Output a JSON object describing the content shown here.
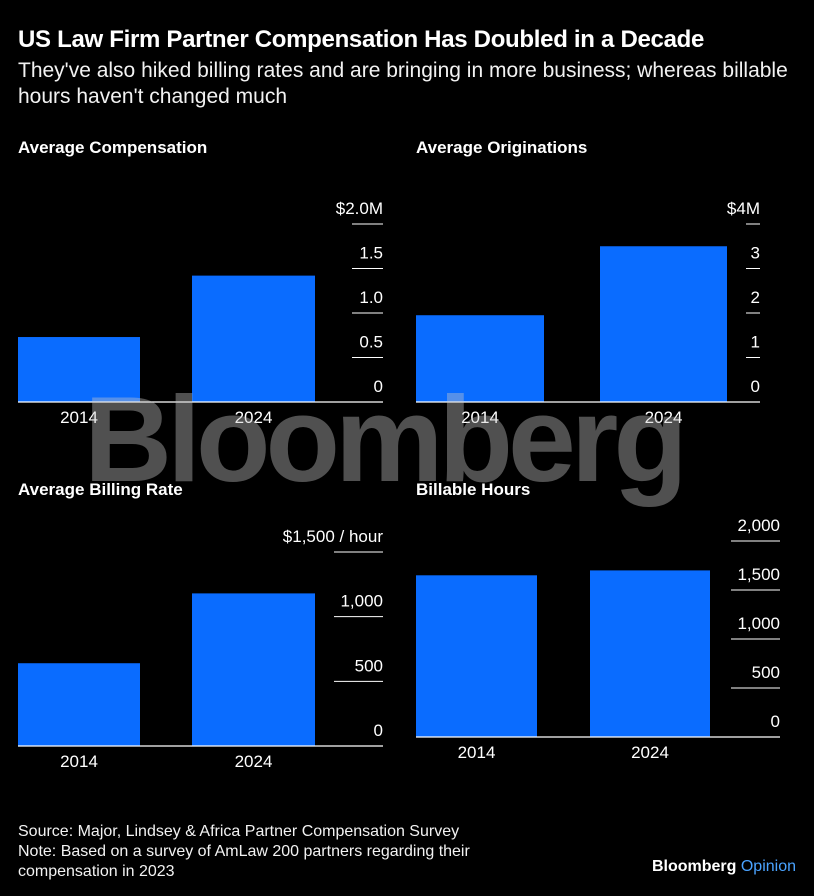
{
  "header": {
    "title": "US Law Firm Partner Compensation Has Doubled in a Decade",
    "subtitle": "They've also hiked billing rates and are bringing in more business; whereas billable hours haven't changed much"
  },
  "colors": {
    "bar": "#0a6cff",
    "background": "#000000",
    "gridline": "#ffffff"
  },
  "chart_data": [
    {
      "type": "bar",
      "title": "Average Compensation",
      "categories": [
        "2014",
        "2024"
      ],
      "values": [
        0.73,
        1.42
      ],
      "ylim": [
        0,
        2.0
      ],
      "ticks": [
        0,
        0.5,
        1.0,
        1.5,
        2.0
      ],
      "tick_labels": [
        "0",
        "0.5",
        "1.0",
        "1.5",
        "$2.0M"
      ]
    },
    {
      "type": "bar",
      "title": "Average Originations",
      "categories": [
        "2014",
        "2024"
      ],
      "values": [
        1.95,
        3.5
      ],
      "ylim": [
        0,
        4
      ],
      "ticks": [
        0,
        1,
        2,
        3,
        4
      ],
      "tick_labels": [
        "0",
        "1",
        "2",
        "3",
        "$4M"
      ]
    },
    {
      "type": "bar",
      "title": "Average Billing Rate",
      "categories": [
        "2014",
        "2024"
      ],
      "values": [
        640,
        1180
      ],
      "ylim": [
        0,
        1500
      ],
      "ticks": [
        0,
        500,
        1000,
        1500
      ],
      "tick_labels": [
        "0",
        "500",
        "1,000",
        "$1,500 / hour"
      ]
    },
    {
      "type": "bar",
      "title": "Billable Hours",
      "categories": [
        "2014",
        "2024"
      ],
      "values": [
        1650,
        1700
      ],
      "ylim": [
        0,
        2000
      ],
      "ticks": [
        0,
        500,
        1000,
        1500,
        2000
      ],
      "tick_labels": [
        "0",
        "500",
        "1,000",
        "1,500",
        "2,000"
      ]
    }
  ],
  "watermark": "Bloomberg",
  "footer": {
    "source": "Source: Major, Lindsey & Africa Partner Compensation Survey",
    "note_line1": "Note: Based on a survey of AmLaw 200 partners regarding their",
    "note_line2": "compensation in 2023"
  },
  "brand": {
    "name": "Bloomberg",
    "suffix": "Opinion"
  }
}
